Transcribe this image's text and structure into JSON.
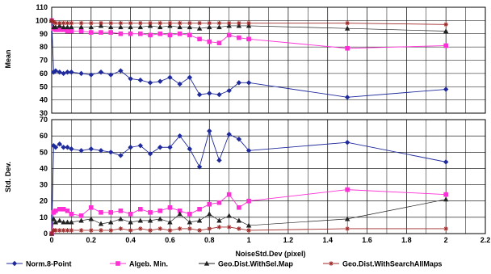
{
  "chart_data": [
    {
      "type": "line",
      "ylabel": "Mean",
      "xlim": [
        0,
        2.2
      ],
      "ylim": [
        30,
        110
      ],
      "yticks": [
        30,
        40,
        50,
        60,
        70,
        80,
        90,
        100,
        110
      ],
      "xticks": [],
      "grid": true,
      "series": [
        {
          "name": "Norm.8-Point",
          "color": "#1f2a9c",
          "marker": "diamond",
          "x": [
            0,
            0.01,
            0.02,
            0.04,
            0.06,
            0.08,
            0.1,
            0.15,
            0.2,
            0.25,
            0.3,
            0.35,
            0.4,
            0.45,
            0.5,
            0.55,
            0.6,
            0.65,
            0.7,
            0.75,
            0.8,
            0.85,
            0.9,
            0.95,
            1.0,
            1.5,
            2.0
          ],
          "y": [
            100,
            61,
            62,
            61,
            60,
            61,
            61,
            60,
            59,
            61,
            59,
            62,
            56,
            55,
            53,
            54,
            57,
            52,
            57,
            44,
            45,
            44,
            47,
            53,
            53,
            42,
            48
          ]
        },
        {
          "name": "Algeb. Min.",
          "color": "#ff2fd6",
          "marker": "square",
          "x": [
            0,
            0.01,
            0.02,
            0.04,
            0.06,
            0.08,
            0.1,
            0.15,
            0.2,
            0.25,
            0.3,
            0.35,
            0.4,
            0.45,
            0.5,
            0.55,
            0.6,
            0.65,
            0.7,
            0.75,
            0.8,
            0.85,
            0.9,
            0.95,
            1.0,
            1.5,
            2.0
          ],
          "y": [
            100,
            94,
            93,
            93,
            93,
            92,
            92,
            92,
            91,
            91,
            91,
            90,
            90,
            90,
            89,
            90,
            89,
            90,
            89,
            86,
            84,
            83,
            89,
            87,
            86,
            79,
            81
          ]
        },
        {
          "name": "Geo.Dist.WithSel.Map",
          "color": "#222222",
          "marker": "triangle",
          "x": [
            0,
            0.01,
            0.02,
            0.04,
            0.06,
            0.08,
            0.1,
            0.15,
            0.2,
            0.25,
            0.3,
            0.35,
            0.4,
            0.45,
            0.5,
            0.55,
            0.6,
            0.65,
            0.7,
            0.75,
            0.8,
            0.85,
            0.9,
            0.95,
            1.0,
            1.5,
            2.0
          ],
          "y": [
            100,
            95,
            95,
            96,
            95,
            95,
            95,
            95,
            95,
            96,
            95,
            95,
            95,
            95,
            96,
            95,
            96,
            95,
            95,
            94,
            95,
            95,
            96,
            96,
            96,
            94,
            92
          ]
        },
        {
          "name": "Geo.Dist.WithSearchAllMaps",
          "color": "#a02a2a",
          "marker": "star",
          "x": [
            0,
            0.01,
            0.02,
            0.04,
            0.06,
            0.08,
            0.1,
            0.15,
            0.2,
            0.25,
            0.3,
            0.35,
            0.4,
            0.45,
            0.5,
            0.55,
            0.6,
            0.65,
            0.7,
            0.75,
            0.8,
            0.85,
            0.9,
            0.95,
            1.0,
            1.5,
            2.0
          ],
          "y": [
            100,
            99,
            98,
            98,
            98,
            98,
            98,
            98,
            98,
            98,
            98,
            98,
            98,
            98,
            98,
            98,
            98,
            98,
            98,
            98,
            98,
            98,
            98,
            98,
            98,
            98,
            97
          ]
        }
      ]
    },
    {
      "type": "line",
      "ylabel": "Std. Dev.",
      "xlabel": "NoiseStd.Dev (pixel)",
      "xlim": [
        0,
        2.2
      ],
      "ylim": [
        0,
        70
      ],
      "yticks": [
        0,
        10,
        20,
        30,
        40,
        50,
        60,
        70
      ],
      "xticks": [
        0,
        0.2,
        0.4,
        0.6,
        0.8,
        1,
        1.2,
        1.4,
        1.6,
        1.8,
        2,
        2.2
      ],
      "grid": true,
      "series": [
        {
          "name": "Norm.8-Point",
          "color": "#1f2a9c",
          "marker": "diamond",
          "x": [
            0,
            0.01,
            0.02,
            0.04,
            0.06,
            0.08,
            0.1,
            0.15,
            0.2,
            0.25,
            0.3,
            0.35,
            0.4,
            0.45,
            0.5,
            0.55,
            0.6,
            0.65,
            0.7,
            0.75,
            0.8,
            0.85,
            0.9,
            0.95,
            1.0,
            1.5,
            2.0
          ],
          "y": [
            0,
            54,
            53,
            55,
            53,
            53,
            52,
            51,
            52,
            51,
            50,
            48,
            53,
            54,
            49,
            53,
            53,
            60,
            52,
            41,
            63,
            45,
            61,
            58,
            51,
            56,
            44
          ]
        },
        {
          "name": "Algeb. Min.",
          "color": "#ff2fd6",
          "marker": "square",
          "x": [
            0,
            0.01,
            0.02,
            0.04,
            0.06,
            0.08,
            0.1,
            0.15,
            0.2,
            0.25,
            0.3,
            0.35,
            0.4,
            0.45,
            0.5,
            0.55,
            0.6,
            0.65,
            0.7,
            0.75,
            0.8,
            0.85,
            0.9,
            0.95,
            1.0,
            1.5,
            2.0
          ],
          "y": [
            0,
            13,
            14,
            15,
            15,
            14,
            12,
            11,
            16,
            13,
            13,
            14,
            12,
            15,
            13,
            14,
            16,
            14,
            12,
            15,
            18,
            19,
            24,
            16,
            20,
            27,
            24
          ]
        },
        {
          "name": "Geo.Dist.WithSel.Map",
          "color": "#222222",
          "marker": "triangle",
          "x": [
            0,
            0.01,
            0.02,
            0.04,
            0.06,
            0.08,
            0.1,
            0.15,
            0.2,
            0.25,
            0.3,
            0.35,
            0.4,
            0.45,
            0.5,
            0.55,
            0.6,
            0.65,
            0.7,
            0.75,
            0.8,
            0.85,
            0.9,
            0.95,
            1.0,
            1.5,
            2.0
          ],
          "y": [
            0,
            9,
            7,
            8,
            7,
            7,
            7,
            8,
            9,
            6,
            7,
            9,
            7,
            8,
            8,
            9,
            7,
            12,
            7,
            8,
            12,
            8,
            11,
            8,
            5,
            9,
            21
          ]
        },
        {
          "name": "Geo.Dist.WithSearchAllMaps",
          "color": "#a02a2a",
          "marker": "star",
          "x": [
            0,
            0.01,
            0.02,
            0.04,
            0.06,
            0.08,
            0.1,
            0.15,
            0.2,
            0.25,
            0.3,
            0.35,
            0.4,
            0.45,
            0.5,
            0.55,
            0.6,
            0.65,
            0.7,
            0.75,
            0.8,
            0.85,
            0.9,
            0.95,
            1.0,
            1.5,
            2.0
          ],
          "y": [
            0,
            2,
            2,
            2,
            2,
            2,
            2,
            2,
            2,
            2,
            2,
            3,
            2,
            3,
            2,
            3,
            2,
            3,
            3,
            2,
            3,
            4,
            4,
            3,
            2,
            3,
            3
          ]
        }
      ]
    }
  ],
  "legend": {
    "position": "bottom",
    "items": [
      {
        "label": "Norm.8-Point",
        "color": "#1f2a9c",
        "marker": "diamond"
      },
      {
        "label": "Algeb. Min.",
        "color": "#ff2fd6",
        "marker": "square"
      },
      {
        "label": "Geo.Dist.WithSel.Map",
        "color": "#222222",
        "marker": "triangle"
      },
      {
        "label": "Geo.Dist.WithSearchAllMaps",
        "color": "#a02a2a",
        "marker": "star"
      }
    ]
  }
}
